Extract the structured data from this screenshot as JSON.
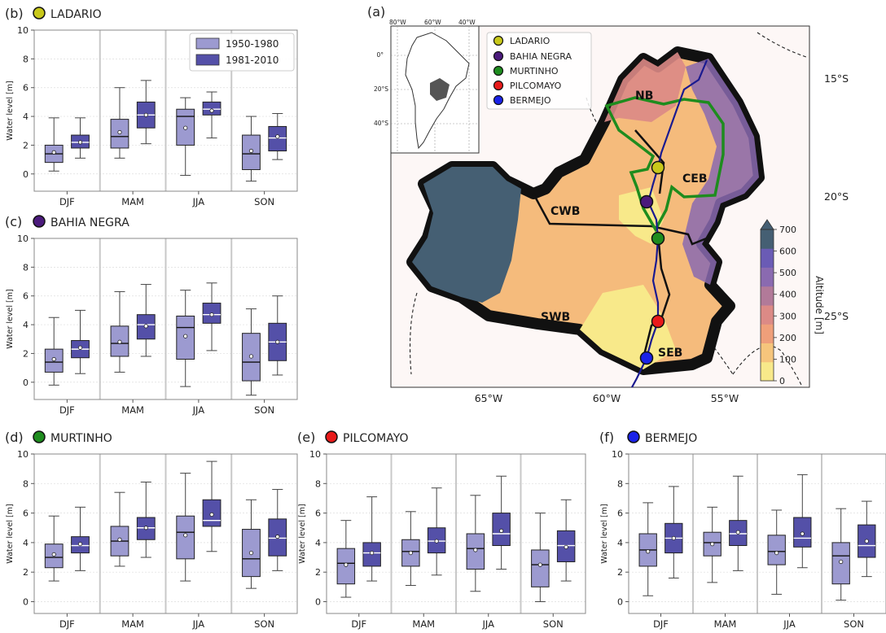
{
  "colors": {
    "period1": "#9c9ad0",
    "period2": "#5450a8",
    "box_edge": "#222222",
    "ladario": "#c8c81a",
    "bahia_negra": "#4b1a7c",
    "murtinho": "#1e8c1e",
    "pilcomayo": "#e81a1a",
    "bermejo": "#1a22e8"
  },
  "chart_data": [
    {
      "type": "boxplot",
      "letter": "(b)",
      "station": "LADARIO",
      "color_key": "ladario",
      "ylabel": "Water level [m]",
      "ylim": [
        -1.2,
        10
      ],
      "yticks": [
        0,
        2,
        4,
        6,
        8,
        10
      ],
      "categories": [
        "DJF",
        "MAM",
        "JJA",
        "SON"
      ],
      "legend": {
        "entries": [
          "1950-1980",
          "1981-2010"
        ],
        "placement": "top-right"
      },
      "series": [
        {
          "name": "1950-1980",
          "boxes": [
            {
              "min": 0.2,
              "q1": 0.8,
              "median": 1.4,
              "q3": 2.0,
              "max": 3.9,
              "mean": 1.5
            },
            {
              "min": 1.1,
              "q1": 1.8,
              "median": 2.6,
              "q3": 3.8,
              "max": 6.0,
              "mean": 2.9
            },
            {
              "min": -0.1,
              "q1": 2.0,
              "median": 4.0,
              "q3": 4.5,
              "max": 5.3,
              "mean": 3.2
            },
            {
              "min": -0.5,
              "q1": 0.3,
              "median": 1.4,
              "q3": 2.7,
              "max": 4.0,
              "mean": 1.6
            }
          ]
        },
        {
          "name": "1981-2010",
          "boxes": [
            {
              "min": 1.1,
              "q1": 1.8,
              "median": 2.2,
              "q3": 2.7,
              "max": 3.9,
              "mean": 2.2
            },
            {
              "min": 2.1,
              "q1": 3.2,
              "median": 4.1,
              "q3": 5.0,
              "max": 6.5,
              "mean": 4.1
            },
            {
              "min": 2.5,
              "q1": 4.1,
              "median": 4.5,
              "q3": 5.0,
              "max": 5.7,
              "mean": 4.4
            },
            {
              "min": 1.0,
              "q1": 1.6,
              "median": 2.5,
              "q3": 3.3,
              "max": 4.2,
              "mean": 2.6
            }
          ]
        }
      ]
    },
    {
      "type": "boxplot",
      "letter": "(c)",
      "station": "BAHIA NEGRA",
      "color_key": "bahia_negra",
      "ylabel": "Water level [m]",
      "ylim": [
        -1.2,
        10
      ],
      "yticks": [
        0,
        2,
        4,
        6,
        8,
        10
      ],
      "categories": [
        "DJF",
        "MAM",
        "JJA",
        "SON"
      ],
      "series": [
        {
          "name": "1950-1980",
          "boxes": [
            {
              "min": -0.2,
              "q1": 0.7,
              "median": 1.4,
              "q3": 2.3,
              "max": 4.5,
              "mean": 1.6
            },
            {
              "min": 0.7,
              "q1": 1.8,
              "median": 2.7,
              "q3": 3.9,
              "max": 6.3,
              "mean": 2.8
            },
            {
              "min": -0.3,
              "q1": 1.6,
              "median": 3.8,
              "q3": 4.6,
              "max": 6.4,
              "mean": 3.2
            },
            {
              "min": -0.9,
              "q1": 0.1,
              "median": 1.4,
              "q3": 3.4,
              "max": 5.1,
              "mean": 1.8
            }
          ]
        },
        {
          "name": "1981-2010",
          "boxes": [
            {
              "min": 0.6,
              "q1": 1.7,
              "median": 2.3,
              "q3": 2.9,
              "max": 5.0,
              "mean": 2.4
            },
            {
              "min": 1.8,
              "q1": 3.0,
              "median": 4.0,
              "q3": 4.7,
              "max": 6.8,
              "mean": 3.9
            },
            {
              "min": 2.2,
              "q1": 4.1,
              "median": 4.7,
              "q3": 5.5,
              "max": 6.9,
              "mean": 4.7
            },
            {
              "min": 0.5,
              "q1": 1.5,
              "median": 2.8,
              "q3": 4.1,
              "max": 6.0,
              "mean": 2.8
            }
          ]
        }
      ]
    },
    {
      "type": "boxplot",
      "letter": "(d)",
      "station": "MURTINHO",
      "color_key": "murtinho",
      "ylabel": "Water level [m]",
      "ylim": [
        -0.8,
        10
      ],
      "yticks": [
        0,
        2,
        4,
        6,
        8,
        10
      ],
      "categories": [
        "DJF",
        "MAM",
        "JJA",
        "SON"
      ],
      "series": [
        {
          "name": "1950-1980",
          "boxes": [
            {
              "min": 1.4,
              "q1": 2.3,
              "median": 3.0,
              "q3": 3.9,
              "max": 5.8,
              "mean": 3.2
            },
            {
              "min": 2.4,
              "q1": 3.1,
              "median": 4.1,
              "q3": 5.1,
              "max": 7.4,
              "mean": 4.2
            },
            {
              "min": 1.4,
              "q1": 2.9,
              "median": 4.7,
              "q3": 5.8,
              "max": 8.7,
              "mean": 4.5
            },
            {
              "min": 0.9,
              "q1": 1.7,
              "median": 2.9,
              "q3": 4.9,
              "max": 6.9,
              "mean": 3.3
            }
          ]
        },
        {
          "name": "1981-2010",
          "boxes": [
            {
              "min": 2.1,
              "q1": 3.3,
              "median": 3.8,
              "q3": 4.4,
              "max": 6.4,
              "mean": 3.9
            },
            {
              "min": 3.0,
              "q1": 4.2,
              "median": 5.0,
              "q3": 5.7,
              "max": 8.1,
              "mean": 5.0
            },
            {
              "min": 3.4,
              "q1": 5.1,
              "median": 5.5,
              "q3": 6.9,
              "max": 9.5,
              "mean": 5.9
            },
            {
              "min": 2.1,
              "q1": 3.1,
              "median": 4.3,
              "q3": 5.6,
              "max": 7.6,
              "mean": 4.4
            }
          ]
        }
      ]
    },
    {
      "type": "boxplot",
      "letter": "(e)",
      "station": "PILCOMAYO",
      "color_key": "pilcomayo",
      "ylabel": "Water level [m]",
      "ylim": [
        -0.8,
        10
      ],
      "yticks": [
        0,
        2,
        4,
        6,
        8,
        10
      ],
      "categories": [
        "DJF",
        "MAM",
        "JJA",
        "SON"
      ],
      "series": [
        {
          "name": "1950-1980",
          "boxes": [
            {
              "min": 0.3,
              "q1": 1.2,
              "median": 2.6,
              "q3": 3.6,
              "max": 5.5,
              "mean": 2.5
            },
            {
              "min": 1.1,
              "q1": 2.4,
              "median": 3.4,
              "q3": 4.2,
              "max": 6.1,
              "mean": 3.3
            },
            {
              "min": 0.7,
              "q1": 2.2,
              "median": 3.6,
              "q3": 4.6,
              "max": 7.2,
              "mean": 3.5
            },
            {
              "min": 0.0,
              "q1": 1.0,
              "median": 2.5,
              "q3": 3.5,
              "max": 6.0,
              "mean": 2.5
            }
          ]
        },
        {
          "name": "1981-2010",
          "boxes": [
            {
              "min": 1.4,
              "q1": 2.4,
              "median": 3.3,
              "q3": 4.0,
              "max": 7.1,
              "mean": 3.3
            },
            {
              "min": 1.8,
              "q1": 3.3,
              "median": 4.1,
              "q3": 5.0,
              "max": 7.7,
              "mean": 4.1
            },
            {
              "min": 2.2,
              "q1": 3.8,
              "median": 4.6,
              "q3": 6.0,
              "max": 8.5,
              "mean": 4.8
            },
            {
              "min": 1.4,
              "q1": 2.7,
              "median": 3.8,
              "q3": 4.8,
              "max": 6.9,
              "mean": 3.7
            }
          ]
        }
      ]
    },
    {
      "type": "boxplot",
      "letter": "(f)",
      "station": "BERMEJO",
      "color_key": "bermejo",
      "ylabel": "Water level [m]",
      "ylim": [
        -0.8,
        10
      ],
      "yticks": [
        0,
        2,
        4,
        6,
        8,
        10
      ],
      "categories": [
        "DJF",
        "MAM",
        "JJA",
        "SON"
      ],
      "series": [
        {
          "name": "1950-1980",
          "boxes": [
            {
              "min": 0.4,
              "q1": 2.4,
              "median": 3.5,
              "q3": 4.6,
              "max": 6.7,
              "mean": 3.4
            },
            {
              "min": 1.3,
              "q1": 3.1,
              "median": 4.0,
              "q3": 4.7,
              "max": 6.4,
              "mean": 3.9
            },
            {
              "min": 0.5,
              "q1": 2.5,
              "median": 3.4,
              "q3": 4.5,
              "max": 6.2,
              "mean": 3.3
            },
            {
              "min": 0.1,
              "q1": 1.2,
              "median": 3.1,
              "q3": 4.0,
              "max": 6.3,
              "mean": 2.7
            }
          ]
        },
        {
          "name": "1981-2010",
          "boxes": [
            {
              "min": 1.6,
              "q1": 3.3,
              "median": 4.3,
              "q3": 5.3,
              "max": 7.8,
              "mean": 4.3
            },
            {
              "min": 2.1,
              "q1": 3.8,
              "median": 4.6,
              "q3": 5.5,
              "max": 8.5,
              "mean": 4.7
            },
            {
              "min": 2.3,
              "q1": 3.7,
              "median": 4.3,
              "q3": 5.7,
              "max": 8.6,
              "mean": 4.6
            },
            {
              "min": 1.7,
              "q1": 3.0,
              "median": 3.8,
              "q3": 5.2,
              "max": 6.8,
              "mean": 4.1
            }
          ]
        }
      ]
    }
  ],
  "map": {
    "letter": "(a)",
    "legend": [
      "LADARIO",
      "BAHIA NEGRA",
      "MURTINHO",
      "PILCOMAYO",
      "BERMEJO"
    ],
    "region_labels": [
      "NB",
      "CEB",
      "CWB",
      "SWB",
      "SEB"
    ],
    "lat_labels": [
      "15°S",
      "20°S",
      "25°S"
    ],
    "lon_labels": [
      "65°W",
      "60°W",
      "55°W"
    ],
    "inset": {
      "lon_labels": [
        "80°W",
        "60°W",
        "40°W"
      ],
      "lat_labels": [
        "0°",
        "20°S",
        "40°S"
      ]
    },
    "colorbar": {
      "label": "Altitude [m]",
      "ticks": [
        "0",
        "100",
        "200",
        "300",
        "400",
        "500",
        "600",
        "700"
      ],
      "colors": [
        "#f8e98a",
        "#f6c57c",
        "#ef9f7a",
        "#dc8a86",
        "#b27a99",
        "#8a6ab0",
        "#6a5bb5",
        "#455f73"
      ]
    }
  }
}
